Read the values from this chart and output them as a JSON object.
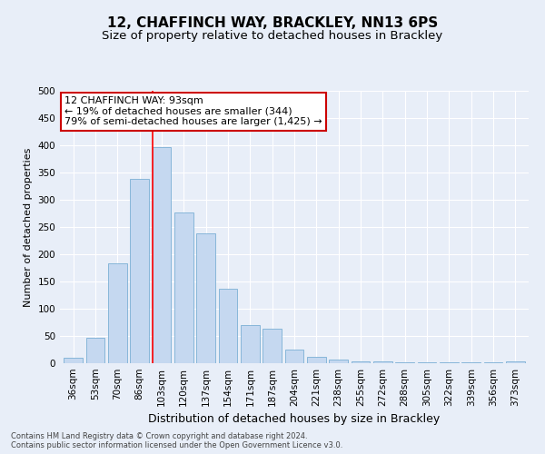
{
  "title": "12, CHAFFINCH WAY, BRACKLEY, NN13 6PS",
  "subtitle": "Size of property relative to detached houses in Brackley",
  "xlabel": "Distribution of detached houses by size in Brackley",
  "ylabel": "Number of detached properties",
  "categories": [
    "36sqm",
    "53sqm",
    "70sqm",
    "86sqm",
    "103sqm",
    "120sqm",
    "137sqm",
    "154sqm",
    "171sqm",
    "187sqm",
    "204sqm",
    "221sqm",
    "238sqm",
    "255sqm",
    "272sqm",
    "288sqm",
    "305sqm",
    "322sqm",
    "339sqm",
    "356sqm",
    "373sqm"
  ],
  "values": [
    10,
    46,
    184,
    338,
    397,
    276,
    238,
    136,
    70,
    63,
    25,
    11,
    6,
    4,
    3,
    2,
    2,
    1,
    1,
    1,
    3
  ],
  "bar_color": "#c5d8f0",
  "bar_edge_color": "#7bafd4",
  "red_line_x": 3.575,
  "annotation_text": "12 CHAFFINCH WAY: 93sqm\n← 19% of detached houses are smaller (344)\n79% of semi-detached houses are larger (1,425) →",
  "annotation_box_color": "#ffffff",
  "annotation_box_edge_color": "#cc0000",
  "ylim": [
    0,
    500
  ],
  "yticks": [
    0,
    50,
    100,
    150,
    200,
    250,
    300,
    350,
    400,
    450,
    500
  ],
  "background_color": "#e8eef8",
  "plot_bg_color": "#e8eef8",
  "footer_line1": "Contains HM Land Registry data © Crown copyright and database right 2024.",
  "footer_line2": "Contains public sector information licensed under the Open Government Licence v3.0.",
  "title_fontsize": 11,
  "subtitle_fontsize": 9.5,
  "xlabel_fontsize": 9,
  "ylabel_fontsize": 8,
  "tick_fontsize": 7.5,
  "annotation_fontsize": 8,
  "footer_fontsize": 6
}
